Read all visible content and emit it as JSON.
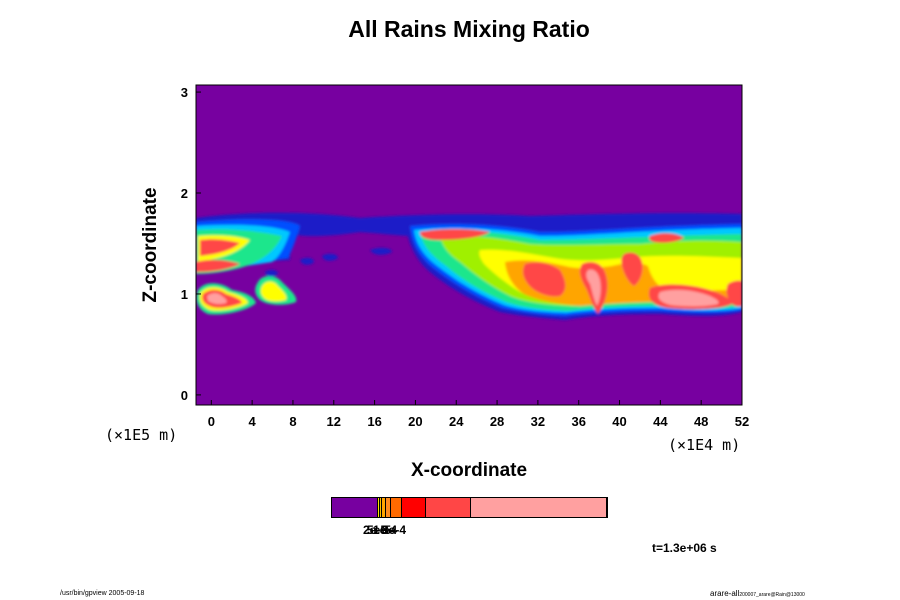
{
  "chart_data": {
    "type": "heatmap",
    "title": "All Rains Mixing Ratio",
    "xlabel": "X-coordinate",
    "ylabel": "Z-coordinate",
    "x_unit": "(×1E4 m)",
    "y_unit": "(×1E5 m)",
    "xlim": [
      -1.5,
      52
    ],
    "ylim": [
      -0.1,
      3.07
    ],
    "x_ticks": [
      "0",
      "4",
      "8",
      "12",
      "16",
      "20",
      "24",
      "28",
      "32",
      "36",
      "40",
      "44",
      "48",
      "52"
    ],
    "y_ticks": [
      "0",
      "1",
      "2",
      "3"
    ],
    "background_color": "#7700a0",
    "colormap": [
      "#7700a0",
      "#1a1ac8",
      "#0050ff",
      "#00c8ff",
      "#1ee68c",
      "#a0f000",
      "#ffff00",
      "#ffa500",
      "#ff0000",
      "#ff4646",
      "#ffa0a0"
    ],
    "colorbar": {
      "segments": [
        {
          "color": "#7700a0",
          "width": 46
        },
        {
          "color": "#ffe000",
          "width": 1
        },
        {
          "color": "#ffc000",
          "width": 1
        },
        {
          "color": "#ffa500",
          "width": 3
        },
        {
          "color": "#ff8c1e",
          "width": 4
        },
        {
          "color": "#ff6a00",
          "width": 11
        },
        {
          "color": "#ff0000",
          "width": 23
        },
        {
          "color": "#ff4646",
          "width": 45
        },
        {
          "color": "#ffa0a0",
          "width": 139
        }
      ],
      "tick_labels_overlapping": [
        "2e-5",
        "5e-5",
        "1e-4",
        "3e-4"
      ]
    },
    "time_label": "t=1.3e+06 s",
    "field_regions": [
      {
        "color": "#1a1ac8",
        "x": [
          -1.5,
          51.9
        ],
        "z": [
          1.58,
          1.76
        ]
      },
      {
        "color": "#1ee68c",
        "x": [
          -1.0,
          10.0
        ],
        "z": [
          1.3,
          1.7
        ]
      },
      {
        "color": "#ff4646",
        "x": [
          -0.5,
          4.0
        ],
        "z": [
          0.88,
          1.02
        ]
      },
      {
        "color": "#1ee68c",
        "x": [
          20.5,
          51.8
        ],
        "z": [
          0.85,
          1.65
        ]
      },
      {
        "color": "#ff4646",
        "x": [
          37.0,
          39.0
        ],
        "z": [
          0.8,
          1.3
        ]
      },
      {
        "color": "#ffa0a0",
        "x": [
          44.0,
          49.0
        ],
        "z": [
          0.88,
          0.98
        ]
      }
    ]
  },
  "footer": {
    "left": "/usr/bin/gpview 2005-09-18",
    "right_main": "arare-all",
    "right_sub": "200007_arare@Rain@13000"
  }
}
